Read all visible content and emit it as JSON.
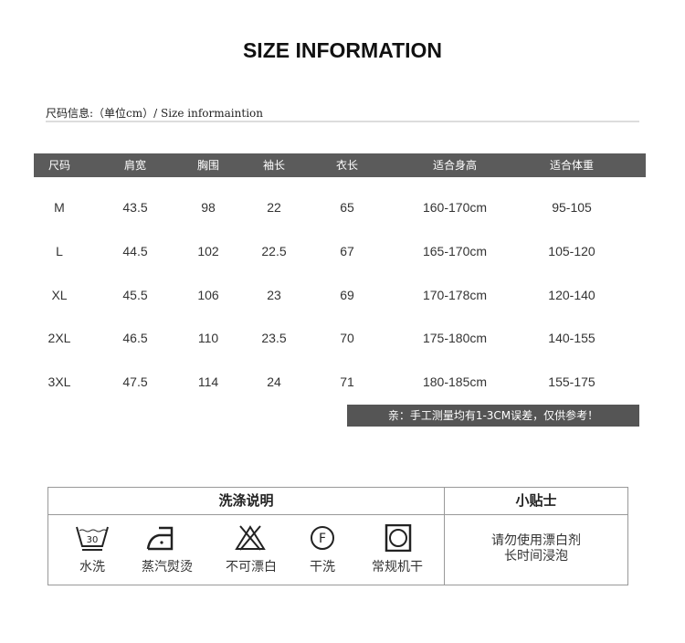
{
  "title": "SIZE INFORMATION",
  "subtitle": "尺码信息:（单位cm）/ Size informaintion",
  "table": {
    "headers": [
      "尺码",
      "肩宽",
      "胸围",
      "袖长",
      "衣长",
      "适合身高",
      "适合体重"
    ],
    "rows": [
      [
        "M",
        "43.5",
        "98",
        "22",
        "65",
        "160-170cm",
        "95-105"
      ],
      [
        "L",
        "44.5",
        "102",
        "22.5",
        "67",
        "165-170cm",
        "105-120"
      ],
      [
        "XL",
        "45.5",
        "106",
        "23",
        "69",
        "170-178cm",
        "120-140"
      ],
      [
        "2XL",
        "46.5",
        "110",
        "23.5",
        "70",
        "175-180cm",
        "140-155"
      ],
      [
        "3XL",
        "47.5",
        "114",
        "24",
        "71",
        "180-185cm",
        "155-175"
      ]
    ]
  },
  "note": "亲：手工测量均有1-3CM误差，仅供参考！",
  "care": {
    "title": "洗涤说明",
    "tips_title": "小贴士",
    "items": [
      {
        "icon": "wash-30-icon",
        "label": "水洗",
        "temp": "30"
      },
      {
        "icon": "steam-iron-icon",
        "label": "蒸汽熨烫"
      },
      {
        "icon": "no-bleach-icon",
        "label": "不可漂白"
      },
      {
        "icon": "dry-clean-f-icon",
        "label": "干洗",
        "letter": "F"
      },
      {
        "icon": "tumble-dry-icon",
        "label": "常规机干"
      }
    ],
    "tips": [
      "请勿使用漂白剂",
      "长时间浸泡"
    ]
  },
  "colors": {
    "header_bg": "#5b5b5b",
    "note_bg": "#555555"
  }
}
